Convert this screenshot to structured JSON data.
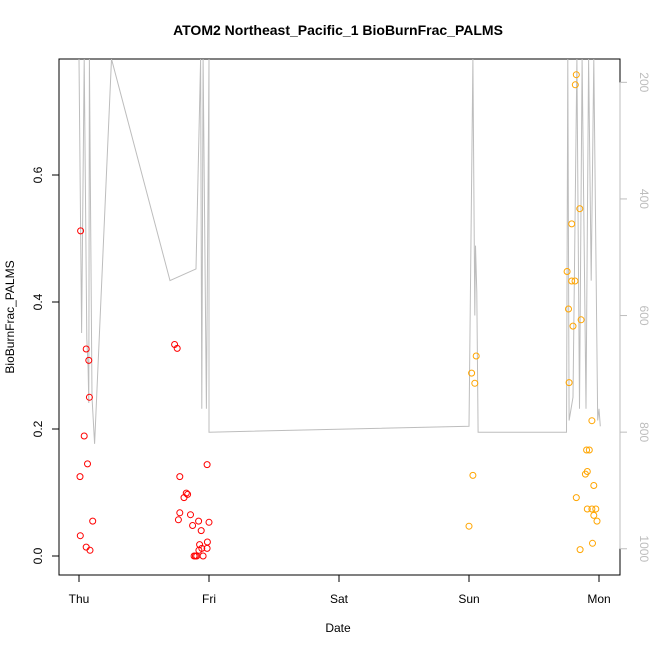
{
  "chart_data": {
    "type": "scatter",
    "title": "ATOM2 Northeast_Pacific_1 BioBurnFrac_PALMS",
    "xlabel": "Date",
    "ylabel": "BioBurnFrac_PALMS",
    "x_ticks": [
      {
        "x": 0,
        "label": "Thu"
      },
      {
        "x": 1,
        "label": "Fri"
      },
      {
        "x": 2,
        "label": "Sat"
      },
      {
        "x": 3,
        "label": "Sun"
      },
      {
        "x": 4,
        "label": "Mon"
      }
    ],
    "y_ticks": [
      0.0,
      0.2,
      0.4,
      0.6
    ],
    "y_tick_labels": [
      "0.0",
      "0.2",
      "0.4",
      "0.6"
    ],
    "xlim": [
      -0.2,
      4.2
    ],
    "ylim": [
      -0.03,
      0.76
    ],
    "right_axis": {
      "ticks": [
        200,
        400,
        600,
        800,
        1000
      ],
      "tick_labels": [
        "200",
        "400",
        "600",
        "800",
        "1000"
      ],
      "range_top": 160,
      "range_bottom": 1045,
      "color": "#bdbdbd"
    },
    "colors": {
      "red": "#ff0000",
      "orange": "#ffa500",
      "pressure_line": "#bdbdbd"
    },
    "series": [
      {
        "color": "#ff0000",
        "points": [
          [
            0.012,
            0.512
          ],
          [
            0.055,
            0.326
          ],
          [
            0.075,
            0.308
          ],
          [
            0.04,
            0.189
          ],
          [
            0.08,
            0.25
          ],
          [
            0.065,
            0.145
          ],
          [
            0.008,
            0.125
          ],
          [
            0.105,
            0.055
          ],
          [
            0.01,
            0.032
          ],
          [
            0.055,
            0.014
          ],
          [
            0.085,
            0.009
          ],
          [
            0.735,
            0.333
          ],
          [
            0.755,
            0.327
          ],
          [
            0.775,
            0.125
          ],
          [
            0.825,
            0.099
          ],
          [
            0.835,
            0.097
          ],
          [
            0.808,
            0.092
          ],
          [
            0.985,
            0.144
          ],
          [
            0.775,
            0.068
          ],
          [
            0.858,
            0.065
          ],
          [
            0.765,
            0.057
          ],
          [
            0.92,
            0.055
          ],
          [
            1.0,
            0.053
          ],
          [
            0.874,
            0.048
          ],
          [
            0.94,
            0.04
          ],
          [
            0.988,
            0.022
          ],
          [
            0.928,
            0.018
          ],
          [
            0.945,
            0.012
          ],
          [
            0.922,
            0.009
          ],
          [
            0.885,
            0.0
          ],
          [
            0.905,
            0.0
          ],
          [
            0.955,
            0.0
          ],
          [
            0.895,
            0.0
          ],
          [
            0.985,
            0.012
          ]
        ]
      },
      {
        "color": "#ffa500",
        "points": [
          [
            3.055,
            0.315
          ],
          [
            3.02,
            0.288
          ],
          [
            3.045,
            0.272
          ],
          [
            3.03,
            0.127
          ],
          [
            3.0,
            0.047
          ],
          [
            3.825,
            0.758
          ],
          [
            3.818,
            0.742
          ],
          [
            3.852,
            0.547
          ],
          [
            3.79,
            0.523
          ],
          [
            3.755,
            0.448
          ],
          [
            3.79,
            0.433
          ],
          [
            3.815,
            0.433
          ],
          [
            3.765,
            0.389
          ],
          [
            3.862,
            0.372
          ],
          [
            3.8,
            0.362
          ],
          [
            3.77,
            0.273
          ],
          [
            3.945,
            0.213
          ],
          [
            3.905,
            0.167
          ],
          [
            3.925,
            0.167
          ],
          [
            3.91,
            0.133
          ],
          [
            3.895,
            0.129
          ],
          [
            3.96,
            0.111
          ],
          [
            3.825,
            0.092
          ],
          [
            3.91,
            0.074
          ],
          [
            3.945,
            0.074
          ],
          [
            3.975,
            0.074
          ],
          [
            3.96,
            0.064
          ],
          [
            3.985,
            0.055
          ],
          [
            3.95,
            0.02
          ],
          [
            3.855,
            0.01
          ]
        ]
      }
    ],
    "pressure_line": [
      [
        0.0,
        160
      ],
      [
        0.02,
        630
      ],
      [
        0.04,
        160
      ],
      [
        0.06,
        640
      ],
      [
        0.07,
        690
      ],
      [
        0.075,
        750
      ],
      [
        0.08,
        160
      ],
      [
        0.1,
        740
      ],
      [
        0.12,
        820
      ],
      [
        0.25,
        160
      ],
      [
        0.25,
        160
      ],
      [
        0.7,
        540
      ],
      [
        0.9,
        520
      ],
      [
        0.935,
        160
      ],
      [
        0.945,
        760
      ],
      [
        0.955,
        160
      ],
      [
        0.98,
        760
      ],
      [
        1.0,
        160
      ],
      [
        1.0,
        800
      ],
      [
        3.0,
        790
      ],
      [
        3.03,
        160
      ],
      [
        3.045,
        600
      ],
      [
        3.05,
        480
      ],
      [
        3.06,
        560
      ],
      [
        3.07,
        800
      ],
      [
        3.75,
        800
      ],
      [
        3.76,
        160
      ],
      [
        3.77,
        780
      ],
      [
        3.8,
        740
      ],
      [
        3.83,
        160
      ],
      [
        3.85,
        760
      ],
      [
        3.87,
        160
      ],
      [
        3.9,
        760
      ],
      [
        3.92,
        160
      ],
      [
        3.94,
        540
      ],
      [
        3.96,
        160
      ],
      [
        3.99,
        780
      ],
      [
        4.0,
        760
      ],
      [
        4.01,
        790
      ]
    ]
  }
}
